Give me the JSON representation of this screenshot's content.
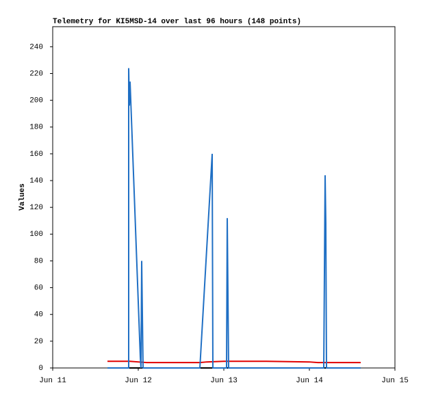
{
  "chart_data": {
    "type": "line",
    "title": "Telemetry for KI5MSD-14 over last 96 hours (148 points)",
    "y_label": "Values",
    "xlim": [
      0,
      4
    ],
    "xticks": [
      {
        "value": 0,
        "label": "Jun 11"
      },
      {
        "value": 1,
        "label": "Jun 12"
      },
      {
        "value": 2,
        "label": "Jun 13"
      },
      {
        "value": 3,
        "label": "Jun 14"
      },
      {
        "value": 4,
        "label": "Jun 15"
      }
    ],
    "ylim": [
      0,
      255
    ],
    "yticks": [
      0,
      20,
      40,
      60,
      80,
      100,
      120,
      140,
      160,
      180,
      200,
      220,
      240
    ],
    "grid": false,
    "series": [
      {
        "color": "#000000",
        "x": [
          0.64,
          1.5,
          2.5,
          3.6
        ],
        "values": [
          0,
          0,
          0,
          0
        ]
      },
      {
        "color": "#e00000",
        "x": [
          0.64,
          0.9,
          1.0,
          1.1,
          1.72,
          1.8,
          2.0,
          2.5,
          3.0,
          3.1,
          3.6
        ],
        "values": [
          5,
          5,
          4.5,
          4,
          4,
          4.5,
          5,
          5,
          4.5,
          4,
          4
        ]
      },
      {
        "color": "#1f6fc4",
        "x": [
          0.64,
          0.888,
          0.888,
          0.896,
          0.904,
          1.024,
          1.032,
          1.04,
          1.048,
          1.056,
          1.72,
          1.864,
          1.872,
          2.032,
          2.04,
          2.048,
          2.056,
          3.168,
          3.176,
          3.184,
          3.192,
          3.2,
          3.6
        ],
        "values": [
          0,
          0,
          224,
          196,
          214,
          8,
          0,
          80,
          40,
          0,
          0,
          160,
          0,
          0,
          112,
          56,
          0,
          0,
          72,
          144,
          108,
          0,
          0
        ]
      }
    ]
  }
}
